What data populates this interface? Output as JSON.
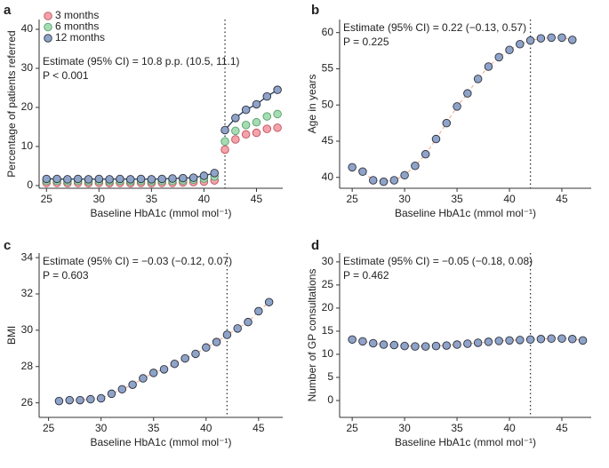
{
  "chart_data": [
    {
      "type": "scatter",
      "panel_label": "a",
      "xlabel": "Baseline HbA1c (mmol mol⁻¹)",
      "ylabel": "Percentage of patients referred",
      "annotations": [
        "Estimate (95% CI) = 10.8 p.p. (10.5, 11.1)",
        "P < 0.001"
      ],
      "x": [
        25,
        26,
        27,
        28,
        29,
        30,
        31,
        32,
        33,
        34,
        35,
        36,
        37,
        38,
        39,
        40,
        41,
        42,
        43,
        44,
        45,
        46,
        47
      ],
      "series": [
        {
          "name": "3 months",
          "color": "#f4a3aa",
          "edge": "#c0505c",
          "values": [
            0.7,
            0.7,
            0.6,
            0.7,
            0.6,
            0.7,
            0.6,
            0.7,
            0.6,
            0.7,
            0.6,
            0.7,
            0.7,
            0.8,
            0.9,
            1.0,
            1.3,
            9.2,
            11.8,
            13.1,
            13.5,
            14.5,
            14.8
          ]
        },
        {
          "name": "6 months",
          "color": "#a6dcb3",
          "edge": "#55a06a",
          "values": [
            1.2,
            1.2,
            1.1,
            1.2,
            1.1,
            1.2,
            1.1,
            1.2,
            1.1,
            1.2,
            1.1,
            1.2,
            1.2,
            1.3,
            1.5,
            1.8,
            2.3,
            11.3,
            14.0,
            15.5,
            16.2,
            17.7,
            18.3
          ]
        },
        {
          "name": "12 months",
          "color": "#8fa3c9",
          "edge": "#2b2f3a",
          "values": [
            1.7,
            1.7,
            1.6,
            1.7,
            1.6,
            1.7,
            1.6,
            1.7,
            1.6,
            1.7,
            1.6,
            1.7,
            1.8,
            1.9,
            2.0,
            2.5,
            3.2,
            14.2,
            17.3,
            19.4,
            20.8,
            22.8,
            24.5
          ]
        }
      ],
      "line": {
        "series": 2,
        "color": "#1f3a5f",
        "dash": false
      },
      "vline": 42,
      "xlim": [
        24.3,
        47.5
      ],
      "xticks": [
        25,
        30,
        35,
        40,
        45
      ],
      "ylim": [
        -0.7,
        42.5
      ],
      "yticks": [
        0,
        10,
        20,
        30,
        40
      ]
    },
    {
      "type": "scatter",
      "panel_label": "b",
      "xlabel": "Baseline HbA1c (mmol mol⁻¹)",
      "ylabel": "Age in years",
      "annotations": [
        "Estimate (95% CI) = 0.22 (−0.13, 0.57)",
        "P = 0.225"
      ],
      "x": [
        25,
        26,
        27,
        28,
        29,
        30,
        31,
        32,
        33,
        34,
        35,
        36,
        37,
        38,
        39,
        40,
        41,
        42,
        43,
        44,
        45,
        46
      ],
      "values": [
        41.4,
        40.8,
        39.6,
        39.4,
        39.6,
        40.3,
        41.6,
        43.2,
        45.3,
        47.5,
        49.8,
        51.6,
        53.6,
        55.3,
        56.6,
        57.6,
        58.4,
        58.9,
        59.2,
        59.3,
        59.3,
        59.0
      ],
      "color": "#8fa3c9",
      "edge": "#2b2f3a",
      "line": {
        "color": "#f4a582",
        "dash": true
      },
      "vline": 42,
      "xlim": [
        23.8,
        47.8
      ],
      "xticks": [
        25,
        30,
        35,
        40,
        45
      ],
      "ylim": [
        38.5,
        61.8
      ],
      "yticks": [
        40,
        45,
        50,
        55,
        60
      ]
    },
    {
      "type": "scatter",
      "panel_label": "c",
      "xlabel": "Baseline HbA1c (mmol mol⁻¹)",
      "ylabel": "BMI",
      "annotations": [
        "Estimate (95% CI) = −0.03 (−0.12, 0.07)",
        "P = 0.603"
      ],
      "x": [
        26,
        27,
        28,
        29,
        30,
        31,
        32,
        33,
        34,
        35,
        36,
        37,
        38,
        39,
        40,
        41,
        42,
        43,
        44,
        45,
        46
      ],
      "values": [
        26.1,
        26.15,
        26.15,
        26.2,
        26.25,
        26.5,
        26.75,
        27.0,
        27.35,
        27.65,
        27.85,
        28.15,
        28.45,
        28.7,
        29.05,
        29.35,
        29.75,
        30.1,
        30.45,
        31.05,
        31.55
      ],
      "color": "#8fa3c9",
      "edge": "#2b2f3a",
      "line": {
        "color": "#f4a582",
        "dash": true
      },
      "vline": 42,
      "xlim": [
        24.1,
        47.3
      ],
      "xticks": [
        25,
        30,
        35,
        40,
        45
      ],
      "ylim": [
        25.2,
        34.25
      ],
      "yticks": [
        26,
        28,
        30,
        32,
        34
      ]
    },
    {
      "type": "scatter",
      "panel_label": "d",
      "xlabel": "Baseline HbA1c (mmol mol⁻¹)",
      "ylabel": "Number of GP consultations",
      "annotations": [
        "Estimate (95% CI) = −0.05 (−0.18, 0.08)",
        "P = 0.462"
      ],
      "x": [
        25,
        26,
        27,
        28,
        29,
        30,
        31,
        32,
        33,
        34,
        35,
        36,
        37,
        38,
        39,
        40,
        41,
        42,
        43,
        44,
        45,
        46,
        47
      ],
      "values": [
        13.2,
        12.8,
        12.4,
        12.1,
        12.0,
        11.8,
        11.7,
        11.7,
        11.8,
        11.9,
        12.1,
        12.3,
        12.5,
        12.7,
        12.9,
        13.0,
        13.1,
        13.2,
        13.3,
        13.4,
        13.4,
        13.3,
        13.0
      ],
      "color": "#8fa3c9",
      "edge": "#2b2f3a",
      "line": {
        "color": "#f4a582",
        "dash": true
      },
      "vline": 42,
      "xlim": [
        23.8,
        47.8
      ],
      "xticks": [
        25,
        30,
        35,
        40,
        45
      ],
      "ylim": [
        -3.65,
        31.9
      ],
      "yticks": [
        0,
        5,
        10,
        15,
        20,
        25,
        30
      ]
    }
  ]
}
